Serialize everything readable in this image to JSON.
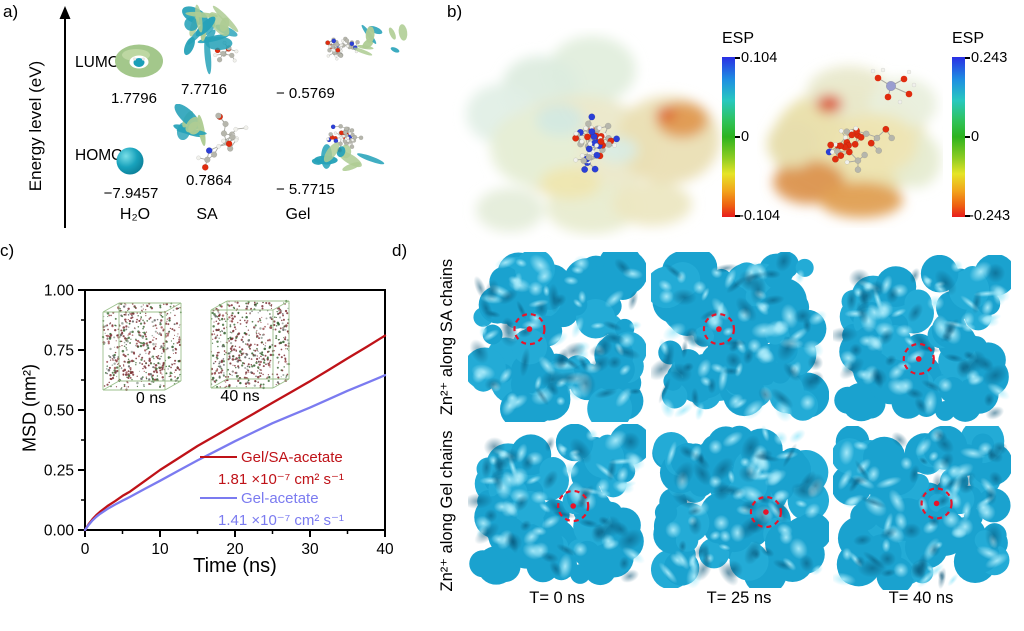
{
  "panel_a": {
    "label": "a)",
    "axis_label": "Energy level (eV)",
    "lumo_label": "LUMO",
    "homo_label": "HOMO",
    "values": {
      "h2o_lumo": "1.7796",
      "sa_lumo": "7.7716",
      "gel_lumo": "− 0.5769",
      "h2o_homo": "−7.9457",
      "sa_homo": "0.7864",
      "gel_homo": "− 5.7715"
    },
    "columns": [
      "H₂O",
      "SA",
      "Gel"
    ]
  },
  "panel_b": {
    "label": "b)",
    "colorbars": [
      {
        "title": "ESP",
        "max": "0.104",
        "mid": "0",
        "min": "-0.104"
      },
      {
        "title": "ESP",
        "max": "0.243",
        "mid": "0",
        "min": "-0.243"
      }
    ]
  },
  "panel_c": {
    "label": "c)",
    "insets": [
      {
        "label": "0 ns"
      },
      {
        "label": "40 ns"
      }
    ],
    "legend": [
      {
        "name": "Gel/SA-acetate",
        "coefficient": "1.81 ×10⁻⁷ cm² s⁻¹",
        "color": "#bf1218"
      },
      {
        "name": "Gel-acetate",
        "coefficient": "1.41 ×10⁻⁷ cm² s⁻¹",
        "color": "#7b7bf0"
      }
    ]
  },
  "chart_data": {
    "type": "line",
    "title": "",
    "xlabel": "Time (ns)",
    "ylabel": "MSD (nm²)",
    "xlim": [
      0,
      40
    ],
    "ylim": [
      0,
      1.0
    ],
    "grid": false,
    "legend_position": "lower right",
    "xticks": [
      0,
      10,
      20,
      30,
      40
    ],
    "xtick_labels": [
      "0",
      "10",
      "20",
      "30",
      "40"
    ],
    "yticks": [
      0,
      0.25,
      0.5,
      0.75,
      1.0
    ],
    "ytick_labels": [
      "0.00",
      "0.25",
      "0.50",
      "0.75",
      "1.00"
    ],
    "x": [
      0,
      0.5,
      1,
      1.5,
      2,
      3,
      4,
      5,
      6,
      8,
      10,
      12.5,
      15,
      17.5,
      20,
      22.5,
      25,
      27.5,
      30,
      32.5,
      35,
      37.5,
      40
    ],
    "series": [
      {
        "name": "Gel/SA-acetate",
        "color": "#bf1218",
        "diffusion_coefficient": "1.81 ×10⁻⁷ cm² s⁻¹",
        "values": [
          0,
          0.025,
          0.045,
          0.062,
          0.076,
          0.1,
          0.12,
          0.142,
          0.16,
          0.205,
          0.25,
          0.3,
          0.35,
          0.395,
          0.44,
          0.485,
          0.53,
          0.575,
          0.62,
          0.667,
          0.715,
          0.762,
          0.81
        ]
      },
      {
        "name": "Gel-acetate",
        "color": "#7b7bf0",
        "diffusion_coefficient": "1.41 ×10⁻⁷ cm² s⁻¹",
        "values": [
          0,
          0.022,
          0.04,
          0.055,
          0.067,
          0.088,
          0.106,
          0.122,
          0.138,
          0.172,
          0.205,
          0.248,
          0.29,
          0.33,
          0.37,
          0.408,
          0.445,
          0.478,
          0.51,
          0.545,
          0.58,
          0.612,
          0.645
        ]
      }
    ]
  },
  "panel_d": {
    "label": "d)",
    "row_labels": [
      "Zn²⁺ along SA chains",
      "Zn²⁺ along Gel chains"
    ],
    "col_labels": [
      "T= 0 ns",
      "T= 25 ns",
      "T= 40 ns"
    ],
    "marker_color": "#e8142a",
    "markers": [
      {
        "row": 0,
        "col": 0,
        "x": 0.33,
        "y": 0.45
      },
      {
        "row": 0,
        "col": 1,
        "x": 0.37,
        "y": 0.45
      },
      {
        "row": 0,
        "col": 2,
        "x": 0.48,
        "y": 0.62
      },
      {
        "row": 1,
        "col": 0,
        "x": 0.6,
        "y": 0.5
      },
      {
        "row": 1,
        "col": 1,
        "x": 0.66,
        "y": 0.54
      },
      {
        "row": 1,
        "col": 2,
        "x": 0.59,
        "y": 0.47
      }
    ]
  }
}
